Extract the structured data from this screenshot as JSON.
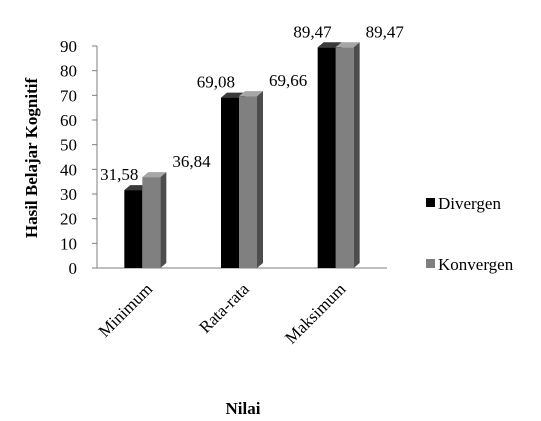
{
  "chart_data": {
    "type": "bar",
    "categories": [
      "Minimum",
      "Rata-rata",
      "Maksimum"
    ],
    "series": [
      {
        "name": "Divergen",
        "values": [
          31.58,
          69.08,
          89.47
        ],
        "labels": [
          "31,58",
          "69,08",
          "89,47"
        ],
        "color": "#000000"
      },
      {
        "name": "Konvergen",
        "values": [
          36.84,
          69.66,
          89.47
        ],
        "labels": [
          "36,84",
          "69,66",
          "89,47"
        ],
        "color": "#808080"
      }
    ],
    "title": "",
    "xlabel": "Nilai",
    "ylabel": "Hasil Belajar Kognitif",
    "ylim": [
      0,
      90
    ],
    "yticks": [
      "0",
      "10",
      "20",
      "30",
      "40",
      "50",
      "60",
      "70",
      "80",
      "90"
    ],
    "grid": false,
    "legend_position": "right"
  }
}
